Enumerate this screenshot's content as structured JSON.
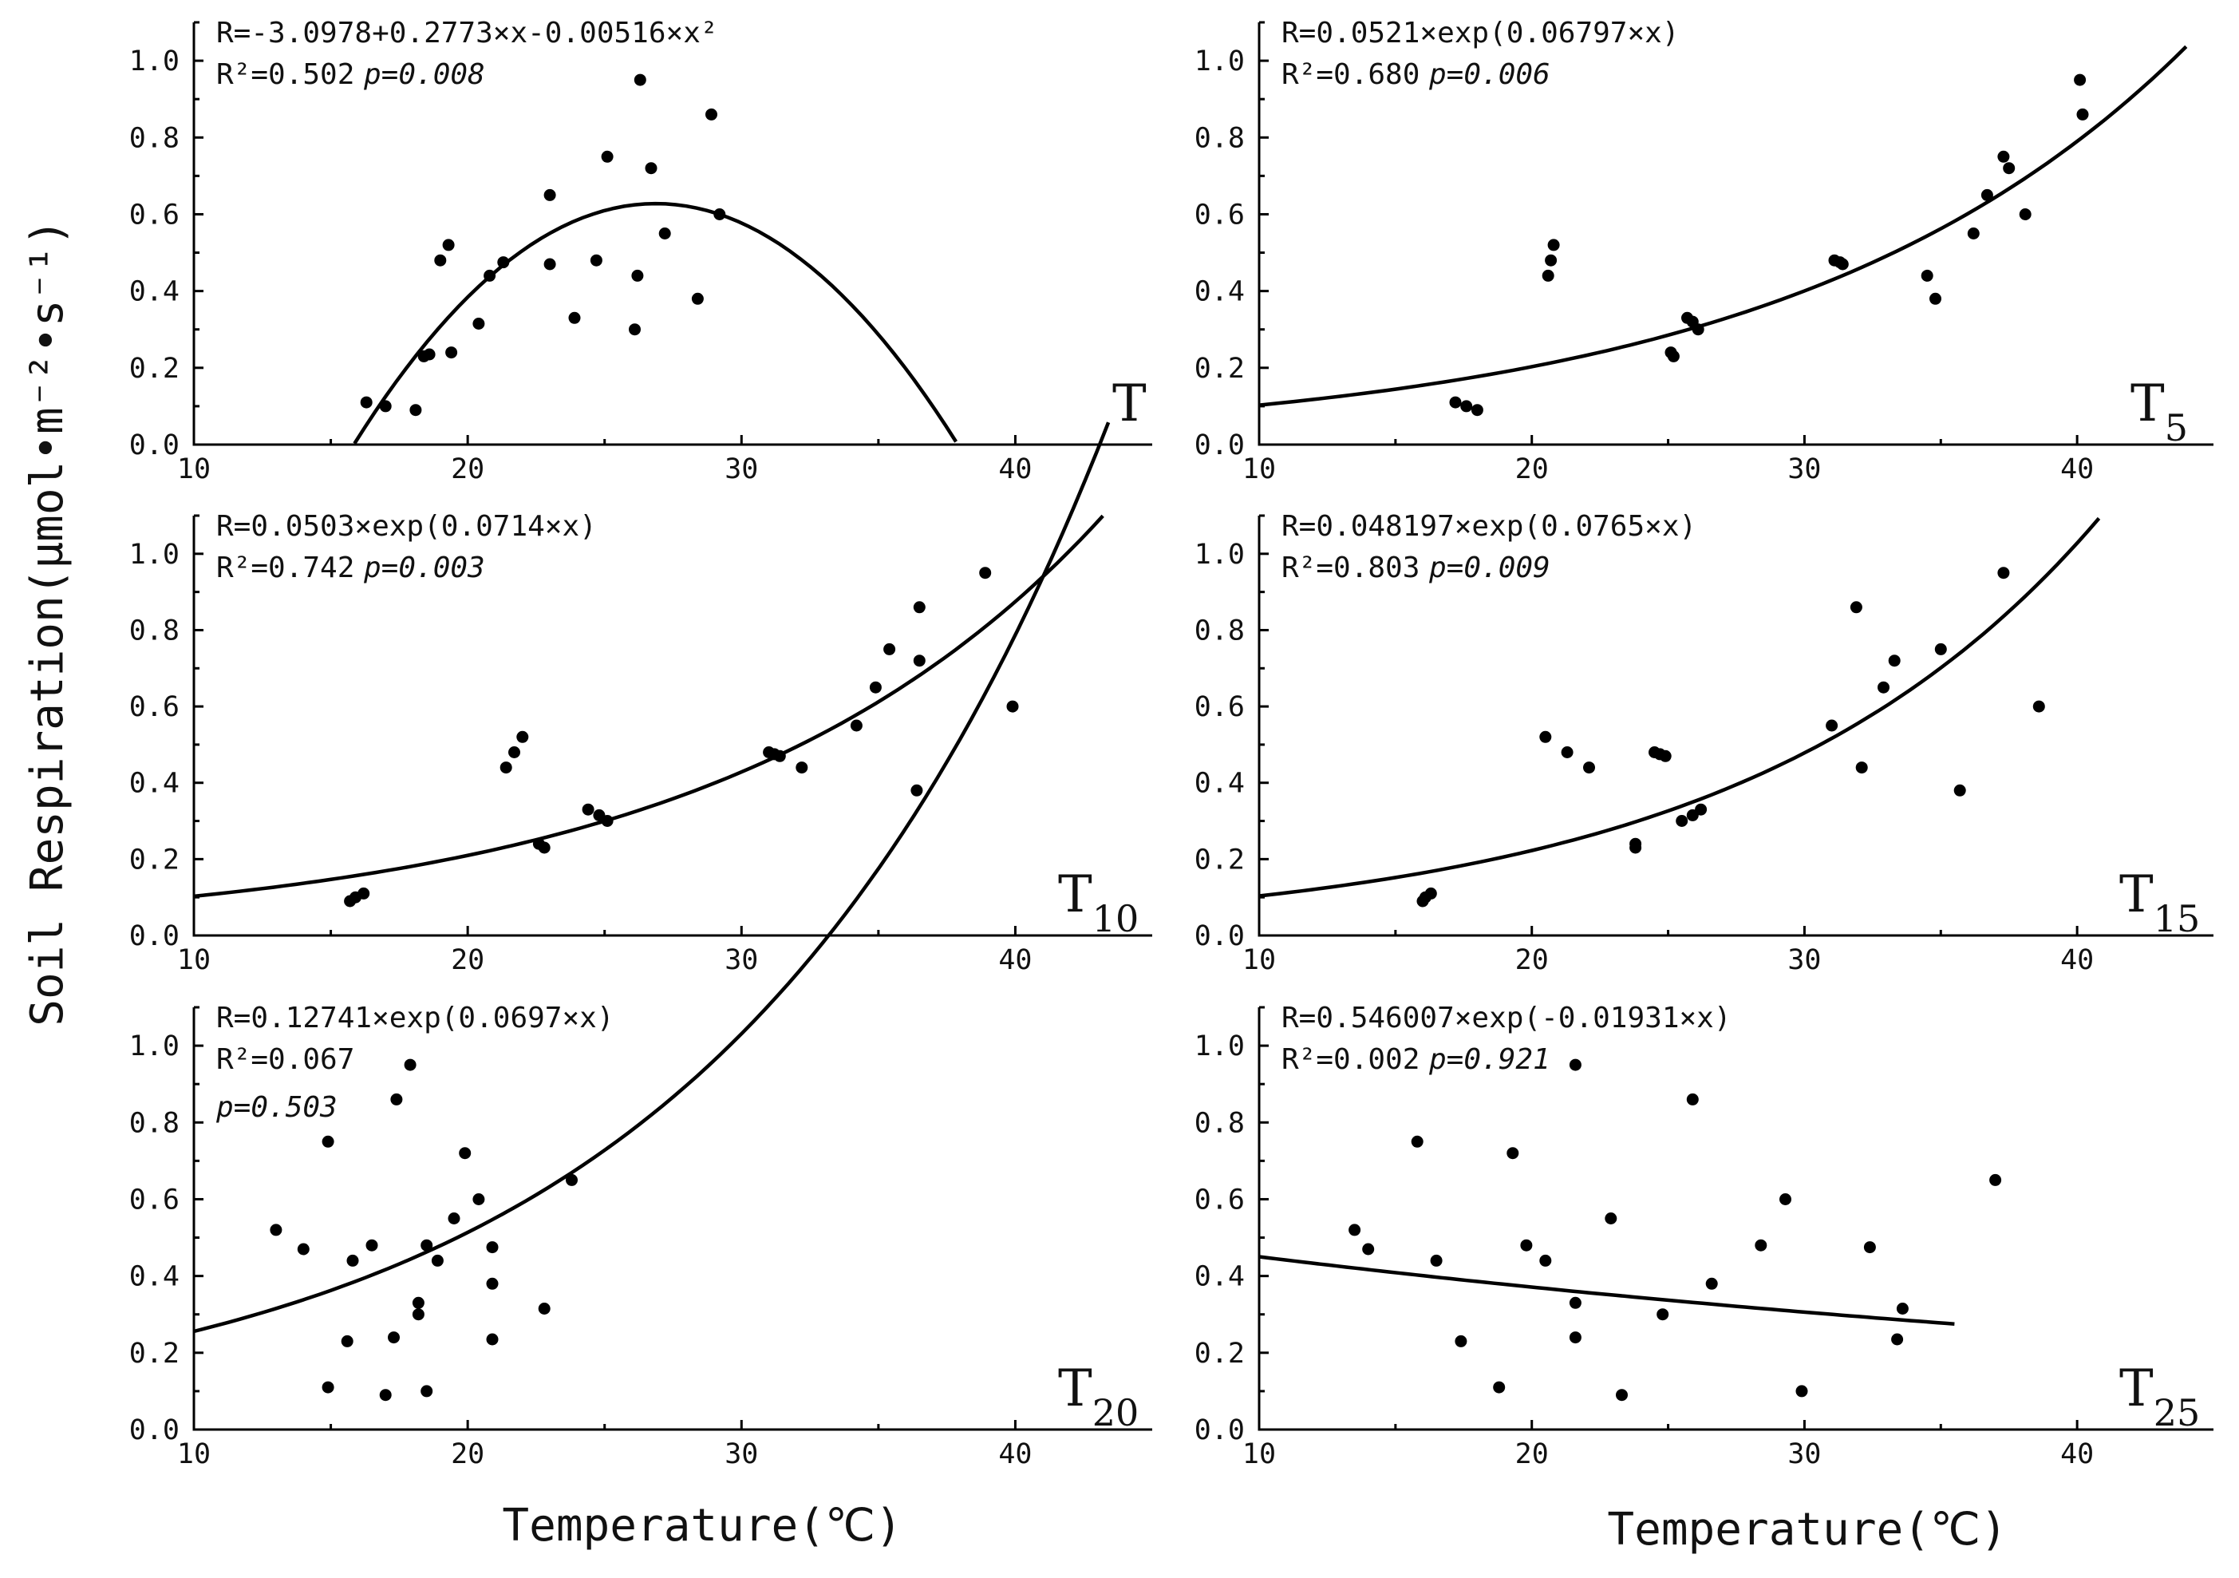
{
  "ylabel": "Soil Respiration(μmol•m⁻²•s⁻¹)",
  "xlabel_left": "Temperature(℃)",
  "xlabel_right": "Temperature(℃)",
  "chart_data": [
    {
      "type": "scatter",
      "panel_label": "T",
      "panel_sub": "",
      "equation": "R=-3.0978+0.2773×x-0.00516×x²",
      "r2_text": "R²=0.502",
      "p_text": "p=0.008",
      "xlim": [
        10,
        45
      ],
      "ylim": [
        0,
        1.1
      ],
      "xticks": [
        10,
        20,
        30,
        40
      ],
      "yticks": [
        0.0,
        0.2,
        0.4,
        0.6,
        0.8,
        1.0
      ],
      "points": [
        [
          16.3,
          0.11
        ],
        [
          17.0,
          0.1
        ],
        [
          18.1,
          0.09
        ],
        [
          18.4,
          0.23
        ],
        [
          18.6,
          0.235
        ],
        [
          19.0,
          0.48
        ],
        [
          19.3,
          0.52
        ],
        [
          19.4,
          0.24
        ],
        [
          20.4,
          0.315
        ],
        [
          20.8,
          0.44
        ],
        [
          21.3,
          0.475
        ],
        [
          23.0,
          0.47
        ],
        [
          23.0,
          0.65
        ],
        [
          23.9,
          0.33
        ],
        [
          24.7,
          0.48
        ],
        [
          25.1,
          0.75
        ],
        [
          26.1,
          0.3
        ],
        [
          26.2,
          0.44
        ],
        [
          26.3,
          0.95
        ],
        [
          26.7,
          0.72
        ],
        [
          27.2,
          0.55
        ],
        [
          28.4,
          0.38
        ],
        [
          28.9,
          0.86
        ],
        [
          29.2,
          0.6
        ]
      ],
      "fit": {
        "kind": "poly2",
        "a": -3.0978,
        "b": 0.2773,
        "c": -0.00516,
        "x0": 11.7,
        "x1": 42.0
      }
    },
    {
      "type": "scatter",
      "panel_label": "T",
      "panel_sub": "5",
      "equation": "R=0.0521×exp(0.06797×x)",
      "r2_text": "R²=0.680",
      "p_text": "p=0.006",
      "xlim": [
        10,
        45
      ],
      "ylim": [
        0,
        1.1
      ],
      "xticks": [
        10,
        20,
        30,
        40
      ],
      "yticks": [
        0.0,
        0.2,
        0.4,
        0.6,
        0.8,
        1.0
      ],
      "points": [
        [
          17.2,
          0.11
        ],
        [
          17.6,
          0.1
        ],
        [
          18.0,
          0.09
        ],
        [
          20.6,
          0.44
        ],
        [
          20.7,
          0.48
        ],
        [
          20.8,
          0.52
        ],
        [
          25.1,
          0.24
        ],
        [
          25.2,
          0.23
        ],
        [
          25.7,
          0.33
        ],
        [
          25.9,
          0.32
        ],
        [
          26.1,
          0.3
        ],
        [
          31.1,
          0.48
        ],
        [
          31.3,
          0.475
        ],
        [
          31.4,
          0.47
        ],
        [
          34.5,
          0.44
        ],
        [
          34.8,
          0.38
        ],
        [
          36.2,
          0.55
        ],
        [
          36.7,
          0.65
        ],
        [
          37.3,
          0.75
        ],
        [
          37.5,
          0.72
        ],
        [
          38.1,
          0.6
        ],
        [
          40.1,
          0.95
        ],
        [
          40.2,
          0.86
        ]
      ],
      "fit": {
        "kind": "exp",
        "a": 0.0521,
        "b": 0.06797,
        "x0": 10,
        "x1": 44.0
      }
    },
    {
      "type": "scatter",
      "panel_label": "T",
      "panel_sub": "10",
      "equation": "R=0.0503×exp(0.0714×x)",
      "r2_text": "R²=0.742",
      "p_text": "p=0.003",
      "xlim": [
        10,
        45
      ],
      "ylim": [
        0,
        1.1
      ],
      "xticks": [
        10,
        20,
        30,
        40
      ],
      "yticks": [
        0.0,
        0.2,
        0.4,
        0.6,
        0.8,
        1.0
      ],
      "points": [
        [
          15.7,
          0.09
        ],
        [
          15.9,
          0.1
        ],
        [
          16.2,
          0.11
        ],
        [
          21.4,
          0.44
        ],
        [
          21.7,
          0.48
        ],
        [
          22.0,
          0.52
        ],
        [
          22.6,
          0.24
        ],
        [
          22.8,
          0.23
        ],
        [
          24.4,
          0.33
        ],
        [
          24.8,
          0.315
        ],
        [
          25.1,
          0.3
        ],
        [
          31.0,
          0.48
        ],
        [
          31.2,
          0.475
        ],
        [
          31.4,
          0.47
        ],
        [
          32.2,
          0.44
        ],
        [
          34.2,
          0.55
        ],
        [
          34.9,
          0.65
        ],
        [
          35.4,
          0.75
        ],
        [
          36.4,
          0.38
        ],
        [
          36.5,
          0.72
        ],
        [
          36.5,
          0.86
        ],
        [
          38.9,
          0.95
        ],
        [
          39.9,
          0.6
        ]
      ],
      "fit": {
        "kind": "exp",
        "a": 0.0503,
        "b": 0.0714,
        "x0": 10,
        "x1": 43.2
      }
    },
    {
      "type": "scatter",
      "panel_label": "T",
      "panel_sub": "15",
      "equation": "R=0.048197×exp(0.0765×x)",
      "r2_text": "R²=0.803",
      "p_text": "p=0.009",
      "xlim": [
        10,
        45
      ],
      "ylim": [
        0,
        1.1
      ],
      "xticks": [
        10,
        20,
        30,
        40
      ],
      "yticks": [
        0.0,
        0.2,
        0.4,
        0.6,
        0.8,
        1.0
      ],
      "points": [
        [
          16.0,
          0.09
        ],
        [
          16.1,
          0.1
        ],
        [
          16.3,
          0.11
        ],
        [
          20.5,
          0.52
        ],
        [
          21.3,
          0.48
        ],
        [
          22.1,
          0.44
        ],
        [
          23.8,
          0.24
        ],
        [
          23.8,
          0.23
        ],
        [
          24.5,
          0.48
        ],
        [
          24.7,
          0.475
        ],
        [
          24.9,
          0.47
        ],
        [
          25.5,
          0.3
        ],
        [
          25.9,
          0.315
        ],
        [
          26.2,
          0.33
        ],
        [
          31.0,
          0.55
        ],
        [
          31.9,
          0.86
        ],
        [
          32.1,
          0.44
        ],
        [
          32.9,
          0.65
        ],
        [
          33.3,
          0.72
        ],
        [
          35.0,
          0.75
        ],
        [
          35.7,
          0.38
        ],
        [
          37.3,
          0.95
        ],
        [
          38.6,
          0.6
        ]
      ],
      "fit": {
        "kind": "exp",
        "a": 0.048197,
        "b": 0.0765,
        "x0": 10,
        "x1": 40.8
      }
    },
    {
      "type": "scatter",
      "panel_label": "T",
      "panel_sub": "20",
      "equation": "R=0.12741×exp(0.0697×x)",
      "r2_text": "R²=0.067",
      "p_text": "p=0.503",
      "xlim": [
        10,
        45
      ],
      "ylim": [
        0,
        1.1
      ],
      "xticks": [
        10,
        20,
        30,
        40
      ],
      "yticks": [
        0.0,
        0.2,
        0.4,
        0.6,
        0.8,
        1.0
      ],
      "points": [
        [
          13.0,
          0.52
        ],
        [
          14.0,
          0.47
        ],
        [
          14.9,
          0.75
        ],
        [
          14.9,
          0.11
        ],
        [
          15.6,
          0.23
        ],
        [
          15.8,
          0.44
        ],
        [
          16.5,
          0.48
        ],
        [
          17.0,
          0.09
        ],
        [
          17.3,
          0.24
        ],
        [
          17.4,
          0.86
        ],
        [
          17.9,
          0.95
        ],
        [
          18.2,
          0.3
        ],
        [
          18.2,
          0.33
        ],
        [
          18.5,
          0.48
        ],
        [
          18.5,
          0.1
        ],
        [
          18.9,
          0.44
        ],
        [
          19.5,
          0.55
        ],
        [
          19.9,
          0.72
        ],
        [
          20.4,
          0.6
        ],
        [
          20.9,
          0.475
        ],
        [
          20.9,
          0.38
        ],
        [
          20.9,
          0.235
        ],
        [
          22.8,
          0.315
        ],
        [
          23.8,
          0.65
        ]
      ],
      "fit": {
        "kind": "exp",
        "a": 0.12741,
        "b": 0.0697,
        "x0": 10,
        "x1": 43.4
      }
    },
    {
      "type": "scatter",
      "panel_label": "T",
      "panel_sub": "25",
      "equation": "R=0.546007×exp(-0.01931×x)",
      "r2_text": "R²=0.002",
      "p_text": "p=0.921",
      "xlim": [
        10,
        45
      ],
      "ylim": [
        0,
        1.1
      ],
      "xticks": [
        10,
        20,
        30,
        40
      ],
      "yticks": [
        0.0,
        0.2,
        0.4,
        0.6,
        0.8,
        1.0
      ],
      "points": [
        [
          13.5,
          0.52
        ],
        [
          14.0,
          0.47
        ],
        [
          15.8,
          0.75
        ],
        [
          16.5,
          0.44
        ],
        [
          17.4,
          0.23
        ],
        [
          18.8,
          0.11
        ],
        [
          19.3,
          0.72
        ],
        [
          19.8,
          0.48
        ],
        [
          20.5,
          0.44
        ],
        [
          21.6,
          0.33
        ],
        [
          21.6,
          0.24
        ],
        [
          21.6,
          0.95
        ],
        [
          22.9,
          0.55
        ],
        [
          23.3,
          0.09
        ],
        [
          24.8,
          0.3
        ],
        [
          25.9,
          0.86
        ],
        [
          26.6,
          0.38
        ],
        [
          28.4,
          0.48
        ],
        [
          29.3,
          0.6
        ],
        [
          29.9,
          0.1
        ],
        [
          32.4,
          0.475
        ],
        [
          33.4,
          0.235
        ],
        [
          33.6,
          0.315
        ],
        [
          37.0,
          0.65
        ]
      ],
      "fit": {
        "kind": "exp",
        "a": 0.546007,
        "b": -0.01931,
        "x0": 10,
        "x1": 35.5
      }
    }
  ]
}
